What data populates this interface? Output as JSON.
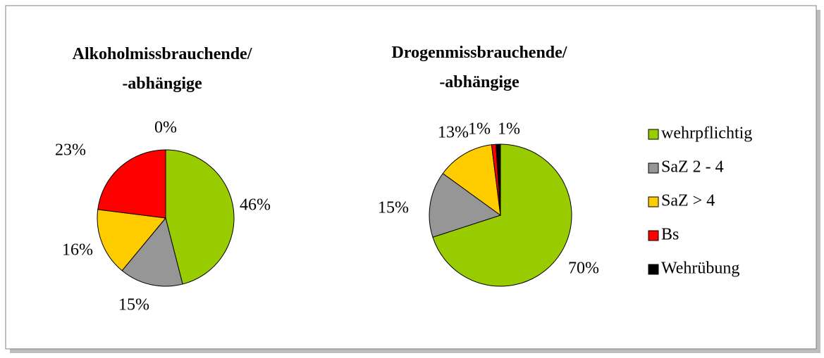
{
  "legend": {
    "categories": [
      "wehrpflichtig",
      "SaZ 2 - 4",
      "SaZ > 4",
      "Bs",
      "Wehrübung"
    ],
    "colors": [
      "#99cc00",
      "#969696",
      "#ffcc00",
      "#ff0000",
      "#000000"
    ]
  },
  "chart_data": [
    {
      "type": "pie",
      "title": "Alkoholmissbrauchende/\n-abhängige",
      "values": [
        46,
        15,
        16,
        23,
        0
      ],
      "value_labels": [
        "46%",
        "15%",
        "16%",
        "23%",
        "0%"
      ]
    },
    {
      "type": "pie",
      "title": "Drogenmissbrauchende/\n-abhängige",
      "values": [
        70,
        15,
        13,
        1,
        1
      ],
      "value_labels": [
        "70%",
        "15%",
        "13%",
        "1%",
        "1%"
      ]
    }
  ]
}
